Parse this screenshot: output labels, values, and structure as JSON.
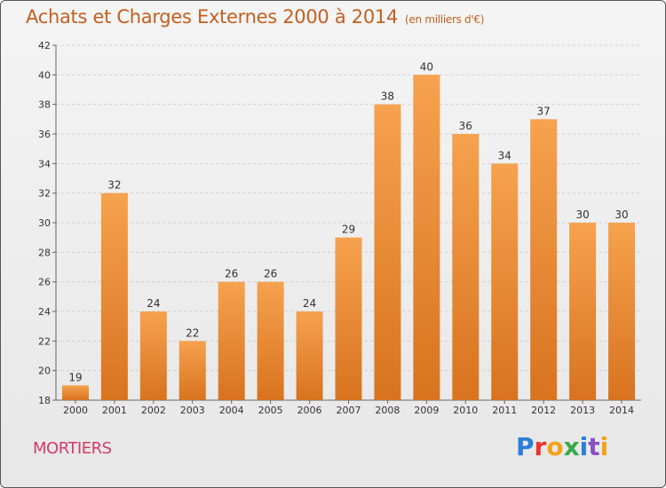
{
  "header": {
    "title": "Achats et Charges Externes 2000 à 2014",
    "subtitle": "(en milliers d'€)"
  },
  "footer": {
    "town": "MORTIERS",
    "logo": "Proxiti"
  },
  "colors": {
    "bar_top": "#f6a24e",
    "bar_bottom": "#d8731f",
    "title": "#c35f1f",
    "town": "#d43a6a"
  },
  "chart_data": {
    "type": "bar",
    "title": "Achats et Charges Externes 2000 à 2014",
    "subtitle": "(en milliers d'€)",
    "xlabel": "",
    "ylabel": "",
    "categories": [
      "2000",
      "2001",
      "2002",
      "2003",
      "2004",
      "2005",
      "2006",
      "2007",
      "2008",
      "2009",
      "2010",
      "2011",
      "2012",
      "2013",
      "2014"
    ],
    "values": [
      19,
      32,
      24,
      22,
      26,
      26,
      24,
      29,
      38,
      40,
      36,
      34,
      37,
      30,
      30
    ],
    "ylim": [
      18,
      42
    ],
    "yticks": [
      18,
      20,
      22,
      24,
      26,
      28,
      30,
      32,
      34,
      36,
      38,
      40,
      42
    ],
    "grid": true,
    "legend": "none"
  }
}
